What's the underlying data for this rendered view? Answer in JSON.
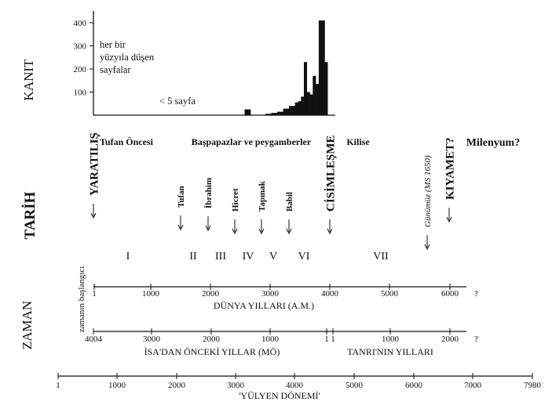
{
  "row_labels": {
    "evidence": "KANIT",
    "history": "TARİH",
    "time": "ZAMAN"
  },
  "chart_data": {
    "type": "bar",
    "yticks": [
      100,
      200,
      300,
      400
    ],
    "ylim": [
      0,
      420
    ],
    "xlim": [
      0,
      4100
    ],
    "annotation_pages": "her bir\nyüzyıla düşen\nsayfalar",
    "annotation_low": "< 5 sayfa",
    "bars": [
      {
        "x": 2550,
        "value": 25
      },
      {
        "x": 2600,
        "value": 25
      },
      {
        "x": 2900,
        "value": 6
      },
      {
        "x": 2950,
        "value": 6
      },
      {
        "x": 3000,
        "value": 10
      },
      {
        "x": 3050,
        "value": 10
      },
      {
        "x": 3100,
        "value": 15
      },
      {
        "x": 3150,
        "value": 15
      },
      {
        "x": 3200,
        "value": 28
      },
      {
        "x": 3250,
        "value": 28
      },
      {
        "x": 3300,
        "value": 40
      },
      {
        "x": 3350,
        "value": 40
      },
      {
        "x": 3400,
        "value": 55
      },
      {
        "x": 3450,
        "value": 60
      },
      {
        "x": 3500,
        "value": 80
      },
      {
        "x": 3550,
        "value": 230
      },
      {
        "x": 3600,
        "value": 100
      },
      {
        "x": 3650,
        "value": 90
      },
      {
        "x": 3700,
        "value": 170
      },
      {
        "x": 3750,
        "value": 135
      },
      {
        "x": 3800,
        "value": 410
      },
      {
        "x": 3850,
        "value": 410
      },
      {
        "x": 3900,
        "value": 230
      }
    ]
  },
  "eras": [
    {
      "key": "era-pre-flood",
      "label": "Tufan Öncesi"
    },
    {
      "key": "era-patriarchs",
      "label": "Başpapazlar ve peygamberler"
    },
    {
      "key": "era-church",
      "label": "Kilise"
    },
    {
      "key": "era-millennium",
      "label": "Milenyum?"
    }
  ],
  "events": [
    {
      "key": "creation",
      "label": "YARATILIŞ"
    },
    {
      "key": "flood",
      "label": "Tufan"
    },
    {
      "key": "abraham",
      "label": "İbrahim"
    },
    {
      "key": "exodus",
      "label": "Hicret"
    },
    {
      "key": "temple",
      "label": "Tapınak"
    },
    {
      "key": "babylon",
      "label": "Babil"
    },
    {
      "key": "incarnation",
      "label": "CİSİMLEŞME"
    },
    {
      "key": "today",
      "label": "Günümüz (MS 1650)"
    },
    {
      "key": "judgement",
      "label": "KIYAMET?"
    }
  ],
  "periods": [
    "I",
    "II",
    "III",
    "IV",
    "V",
    "VI",
    "VII"
  ],
  "world_years": {
    "start_label": "zamanın başlangıcı",
    "ticks": [
      "1",
      "1000",
      "2000",
      "3000",
      "4000",
      "5000",
      "6000"
    ],
    "question": "?",
    "caption": "DÜNYA YILLARI (A.M.)"
  },
  "bc_years": {
    "ticks": [
      "4004",
      "3000",
      "2000",
      "1000",
      "1"
    ],
    "caption": "İSA'DAN ÖNCEKİ YILLAR (MÖ)"
  },
  "ad_years": {
    "ticks": [
      "1",
      "1000",
      "2000"
    ],
    "question": "?",
    "caption": "TANRI'NIN YILLARI"
  },
  "julian": {
    "ticks": [
      "1",
      "1000",
      "2000",
      "3000",
      "4000",
      "5000",
      "6000",
      "7000",
      "7980"
    ],
    "caption": "'YÜLYEN DÖNEMİ'"
  }
}
